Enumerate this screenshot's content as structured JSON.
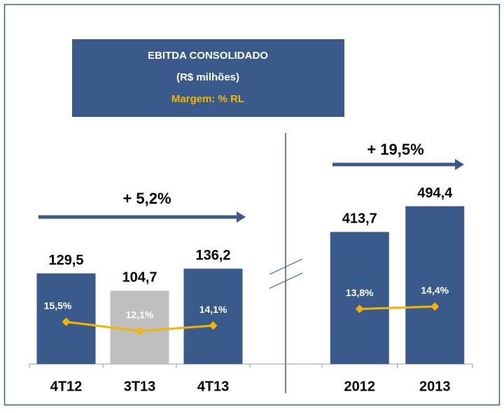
{
  "header": {
    "title": "EBITDA CONSOLIDADO",
    "subtitle": "(R$ milhões)",
    "note": "Margem: % RL"
  },
  "chart_data": [
    {
      "type": "bar",
      "categories": [
        "4T12",
        "3T13",
        "4T13"
      ],
      "values": [
        129.5,
        104.7,
        136.2
      ],
      "value_labels": [
        "129,5",
        "104,7",
        "136,2"
      ],
      "colors": [
        "#3a5a8c",
        "#bfbfbf",
        "#3a5a8c"
      ],
      "ylim": [
        0,
        140
      ],
      "line": {
        "values": [
          15.5,
          12.1,
          14.1
        ],
        "value_labels": [
          "15,5%",
          "12,1%",
          "14,1%"
        ],
        "color": "#f5b400",
        "axis": "y2"
      },
      "y2lim": [
        0,
        36
      ],
      "annotation": "+ 5,2%"
    },
    {
      "type": "bar",
      "categories": [
        "2012",
        "2013"
      ],
      "values": [
        413.7,
        494.4
      ],
      "value_labels": [
        "413,7",
        "494,4"
      ],
      "colors": [
        "#3a5a8c",
        "#3a5a8c"
      ],
      "ylim": [
        0,
        500
      ],
      "line": {
        "values": [
          13.8,
          14.4
        ],
        "value_labels": [
          "13,8%",
          "14,4%"
        ],
        "color": "#f5b400",
        "axis": "y2"
      },
      "y2lim": [
        0,
        40
      ],
      "annotation": "+ 19,5%"
    }
  ]
}
